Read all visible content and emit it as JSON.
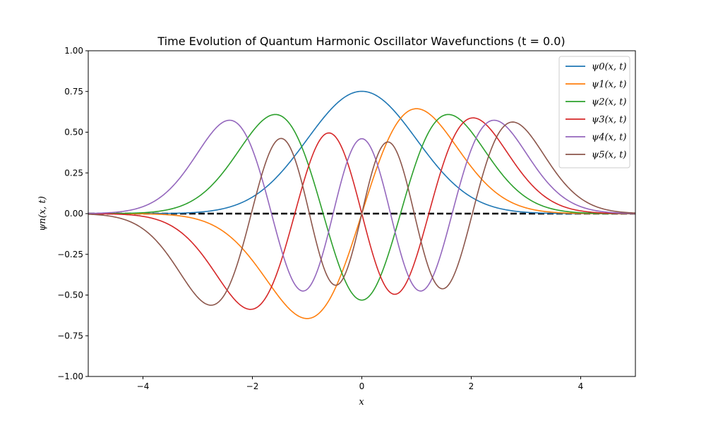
{
  "chart_data": {
    "type": "line",
    "title": "Time Evolution of Quantum Harmonic Oscillator Wavefunctions (t = 0.0)",
    "xlabel": "x",
    "ylabel": "ψn(x, t)",
    "xlim": [
      -5,
      5
    ],
    "ylim": [
      -1.0,
      1.0
    ],
    "x_ticks": [
      -4,
      -2,
      0,
      2,
      4
    ],
    "x_tick_labels": [
      "−4",
      "−2",
      "0",
      "2",
      "4"
    ],
    "y_ticks": [
      -1.0,
      -0.75,
      -0.5,
      -0.25,
      0.0,
      0.25,
      0.5,
      0.75,
      1.0
    ],
    "y_tick_labels": [
      "−1.00",
      "−0.75",
      "−0.50",
      "−0.25",
      "0.00",
      "0.25",
      "0.50",
      "0.75",
      "1.00"
    ],
    "grid": false,
    "legend_position": "top-right",
    "baseline": {
      "y": 0,
      "style": "dashed",
      "color": "#000000"
    },
    "series": [
      {
        "name": "ψ0(x, t)",
        "n": 0,
        "color": "#1f77b4"
      },
      {
        "name": "ψ1(x, t)",
        "n": 1,
        "color": "#ff7f0e"
      },
      {
        "name": "ψ2(x, t)",
        "n": 2,
        "color": "#2ca02c"
      },
      {
        "name": "ψ3(x, t)",
        "n": 3,
        "color": "#d62728"
      },
      {
        "name": "ψ4(x, t)",
        "n": 4,
        "color": "#9467bd"
      },
      {
        "name": "ψ5(x, t)",
        "n": 5,
        "color": "#8c564b"
      }
    ],
    "sampled_points": {
      "x": [
        -4,
        -3,
        -2.5,
        -2,
        -1.5,
        -1,
        -0.5,
        0,
        0.5,
        1,
        1.5,
        2,
        2.5,
        3,
        4
      ],
      "psi0": [
        0.0003,
        0.0084,
        0.033,
        0.102,
        0.244,
        0.456,
        0.663,
        0.751,
        0.663,
        0.456,
        0.244,
        0.102,
        0.033,
        0.0084,
        0.0003
      ],
      "psi1": [
        -0.0019,
        -0.036,
        -0.116,
        -0.287,
        -0.517,
        -0.645,
        -0.469,
        0.0,
        0.469,
        0.645,
        0.517,
        0.287,
        0.116,
        0.036,
        0.0019
      ],
      "psi2": [
        0.0058,
        0.103,
        0.272,
        0.51,
        0.604,
        0.322,
        -0.234,
        -0.531,
        -0.234,
        0.322,
        0.604,
        0.51,
        0.272,
        0.103,
        0.0058
      ],
      "psi3": [
        -0.0136,
        -0.214,
        -0.468,
        -0.584,
        -0.247,
        0.395,
        0.474,
        0.0,
        -0.474,
        -0.395,
        0.247,
        0.584,
        0.468,
        0.214,
        0.0136
      ],
      "psi4": [
        0.0265,
        0.362,
        0.566,
        0.305,
        -0.324,
        -0.419,
        0.068,
        0.46,
        0.068,
        -0.419,
        -0.324,
        0.305,
        0.566,
        0.362,
        0.0265
      ],
      "psi5": [
        -0.0446,
        -0.516,
        -0.463,
        0.158,
        0.44,
        -0.232,
        -0.424,
        0.0,
        0.424,
        0.232,
        -0.44,
        -0.158,
        0.463,
        0.516,
        0.0446
      ]
    }
  }
}
